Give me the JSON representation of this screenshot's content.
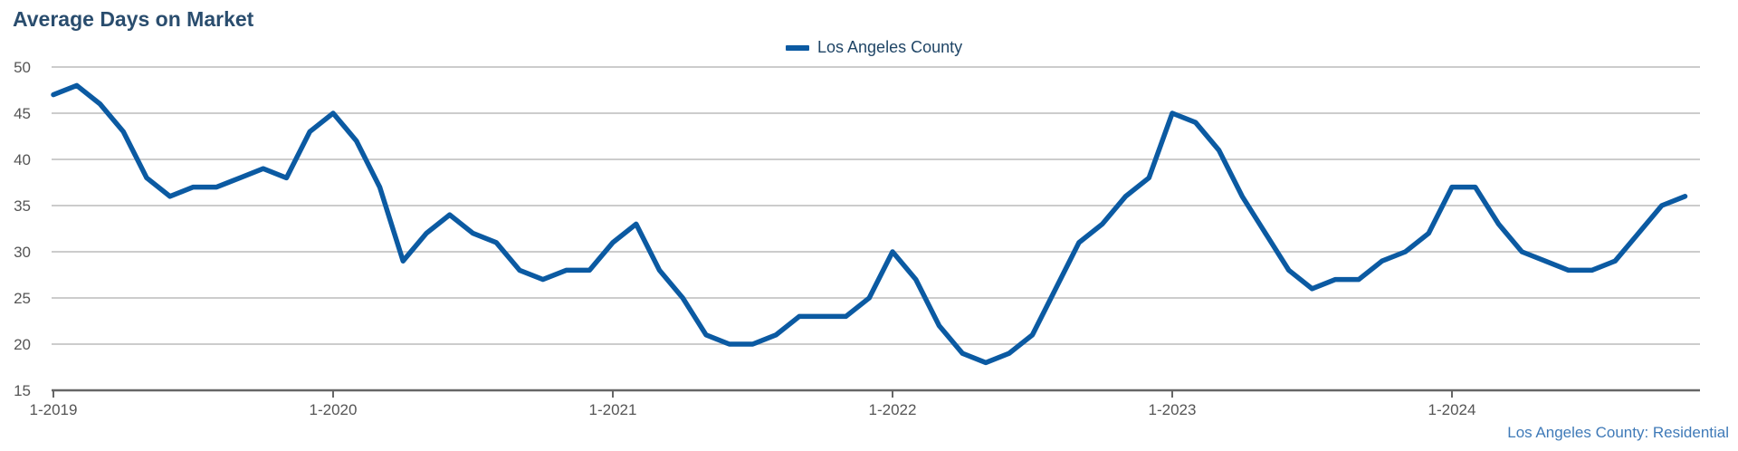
{
  "chart_data": {
    "type": "line",
    "title": "Average Days on Market",
    "xlabel": "",
    "ylabel": "",
    "ylim": [
      15,
      50
    ],
    "y_ticks": [
      "15",
      "20",
      "25",
      "30",
      "35",
      "40",
      "45",
      "50"
    ],
    "x_tick_labels": [
      "1-2019",
      "1-2020",
      "1-2021",
      "1-2022",
      "1-2023",
      "1-2024"
    ],
    "grid": true,
    "legend_position": "top-center",
    "colors": {
      "series": "#0b5aa2",
      "title": "#2a4d6e",
      "grid": "#bbbbbb",
      "axis": "#666666"
    },
    "x": [
      "1-2019",
      "2-2019",
      "3-2019",
      "4-2019",
      "5-2019",
      "6-2019",
      "7-2019",
      "8-2019",
      "9-2019",
      "10-2019",
      "11-2019",
      "12-2019",
      "1-2020",
      "2-2020",
      "3-2020",
      "4-2020",
      "5-2020",
      "6-2020",
      "7-2020",
      "8-2020",
      "9-2020",
      "10-2020",
      "11-2020",
      "12-2020",
      "1-2021",
      "2-2021",
      "3-2021",
      "4-2021",
      "5-2021",
      "6-2021",
      "7-2021",
      "8-2021",
      "9-2021",
      "10-2021",
      "11-2021",
      "12-2021",
      "1-2022",
      "2-2022",
      "3-2022",
      "4-2022",
      "5-2022",
      "6-2022",
      "7-2022",
      "8-2022",
      "9-2022",
      "10-2022",
      "11-2022",
      "12-2022",
      "1-2023",
      "2-2023",
      "3-2023",
      "4-2023",
      "5-2023",
      "6-2023",
      "7-2023",
      "8-2023",
      "9-2023",
      "10-2023",
      "11-2023",
      "12-2023",
      "1-2024",
      "2-2024",
      "3-2024",
      "4-2024",
      "5-2024",
      "6-2024",
      "7-2024",
      "8-2024",
      "9-2024",
      "10-2024",
      "11-2024"
    ],
    "series": [
      {
        "name": "Los Angeles County",
        "values": [
          47,
          48,
          46,
          43,
          38,
          36,
          37,
          37,
          38,
          39,
          38,
          43,
          45,
          42,
          37,
          29,
          32,
          34,
          32,
          31,
          28,
          27,
          28,
          28,
          31,
          33,
          28,
          25,
          21,
          20,
          20,
          21,
          23,
          23,
          23,
          25,
          30,
          27,
          22,
          19,
          18,
          19,
          21,
          26,
          31,
          33,
          36,
          38,
          45,
          44,
          41,
          36,
          32,
          28,
          26,
          27,
          27,
          29,
          30,
          32,
          37,
          37,
          33,
          30,
          29,
          28,
          28,
          29,
          32,
          35,
          36
        ]
      }
    ],
    "source_note": "Los Angeles County: Residential"
  }
}
